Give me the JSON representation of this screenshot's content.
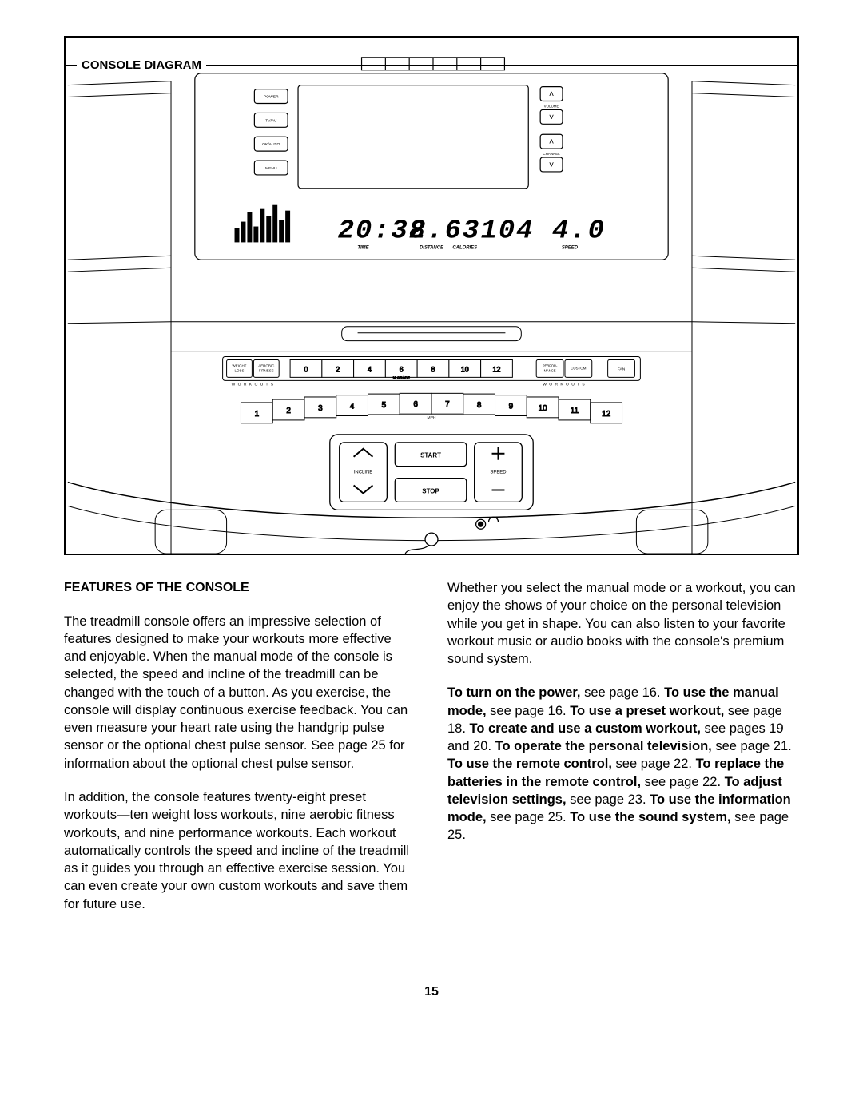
{
  "page_number": "15",
  "diagram": {
    "title": "CONSOLE DIAGRAM",
    "tv_buttons": [
      "POWER",
      "TV/AV",
      "OK/AUTO",
      "MENU"
    ],
    "right_controls": [
      {
        "label": "VOLUME",
        "up": "˄",
        "down": "˅"
      },
      {
        "label": "CHANNEL",
        "up": "˄",
        "down": "˅"
      }
    ],
    "readouts": {
      "time": {
        "value": "20:38",
        "label": "TIME"
      },
      "distance": {
        "value": "2.63",
        "label": "DISTANCE"
      },
      "calories": {
        "value": "104",
        "label": "CALORIES"
      },
      "speed": {
        "value": "4.0",
        "label": "SPEED"
      }
    },
    "workout_left": [
      {
        "l1": "WEIGHT",
        "l2": "LOSS"
      },
      {
        "l1": "AEROBIC",
        "l2": "FITNESS"
      }
    ],
    "workout_left_label": "W  O  R  K  O  U  T  S",
    "incline_buttons": [
      "0",
      "2",
      "4",
      "6",
      "8",
      "10",
      "12"
    ],
    "incline_sub": "% GRADE",
    "workout_right": [
      {
        "l1": "PERFOR-",
        "l2": "MANCE"
      },
      {
        "l1": "CUSTOM",
        "l2": ""
      }
    ],
    "workout_right_label": "W  O  R  K  O  U  T  S",
    "fan_label": "FAN",
    "mph_buttons": [
      "1",
      "2",
      "3",
      "4",
      "5",
      "6",
      "7",
      "8",
      "9",
      "10",
      "11",
      "12"
    ],
    "mph_label": "MPH",
    "control": {
      "incline_label": "INCLINE",
      "start": "START",
      "stop": "STOP",
      "speed_label": "SPEED"
    },
    "colors": {
      "stroke": "#000000",
      "bg": "#ffffff"
    }
  },
  "text": {
    "heading": "FEATURES OF THE CONSOLE",
    "p1": "The treadmill console offers an impressive selection of features designed to make your workouts more effective and enjoyable. When the manual mode of the console is selected, the speed and incline of the treadmill can be changed with the touch of a button. As you exercise, the console will display continuous exercise feedback. You can even measure your heart rate using the handgrip pulse sensor or the optional chest pulse sensor. See page 25 for information about the optional chest pulse sensor.",
    "p2": "In addition, the console features twenty-eight preset workouts—ten weight loss workouts, nine aerobic fitness workouts, and nine performance workouts. Each workout automatically controls the speed and incline of the treadmill as it guides you through an effective exercise session. You can even create your own custom workouts and save them for future use.",
    "p3": "Whether you select the manual mode or a workout, you can enjoy the shows of your choice on the personal television while you get in shape. You can also listen to your favorite workout music or audio books with the console's premium sound system.",
    "refs": {
      "r1a": "To turn on the power,",
      "r1b": " see page 16. ",
      "r2a": "To use the manual mode,",
      "r2b": " see page 16. ",
      "r3a": "To use a preset workout,",
      "r3b": " see page 18. ",
      "r4a": "To create and use a custom workout,",
      "r4b": " see pages 19 and 20. ",
      "r5a": "To operate the personal television,",
      "r5b": " see page 21. ",
      "r6a": "To use the remote control,",
      "r6b": " see page 22. ",
      "r7a": "To replace the batteries in the remote control,",
      "r7b": " see page 22. ",
      "r8a": "To adjust television settings,",
      "r8b": " see page 23. ",
      "r9a": "To use the information mode,",
      "r9b": " see page 25. ",
      "r10a": "To use the sound system,",
      "r10b": " see page 25."
    }
  }
}
